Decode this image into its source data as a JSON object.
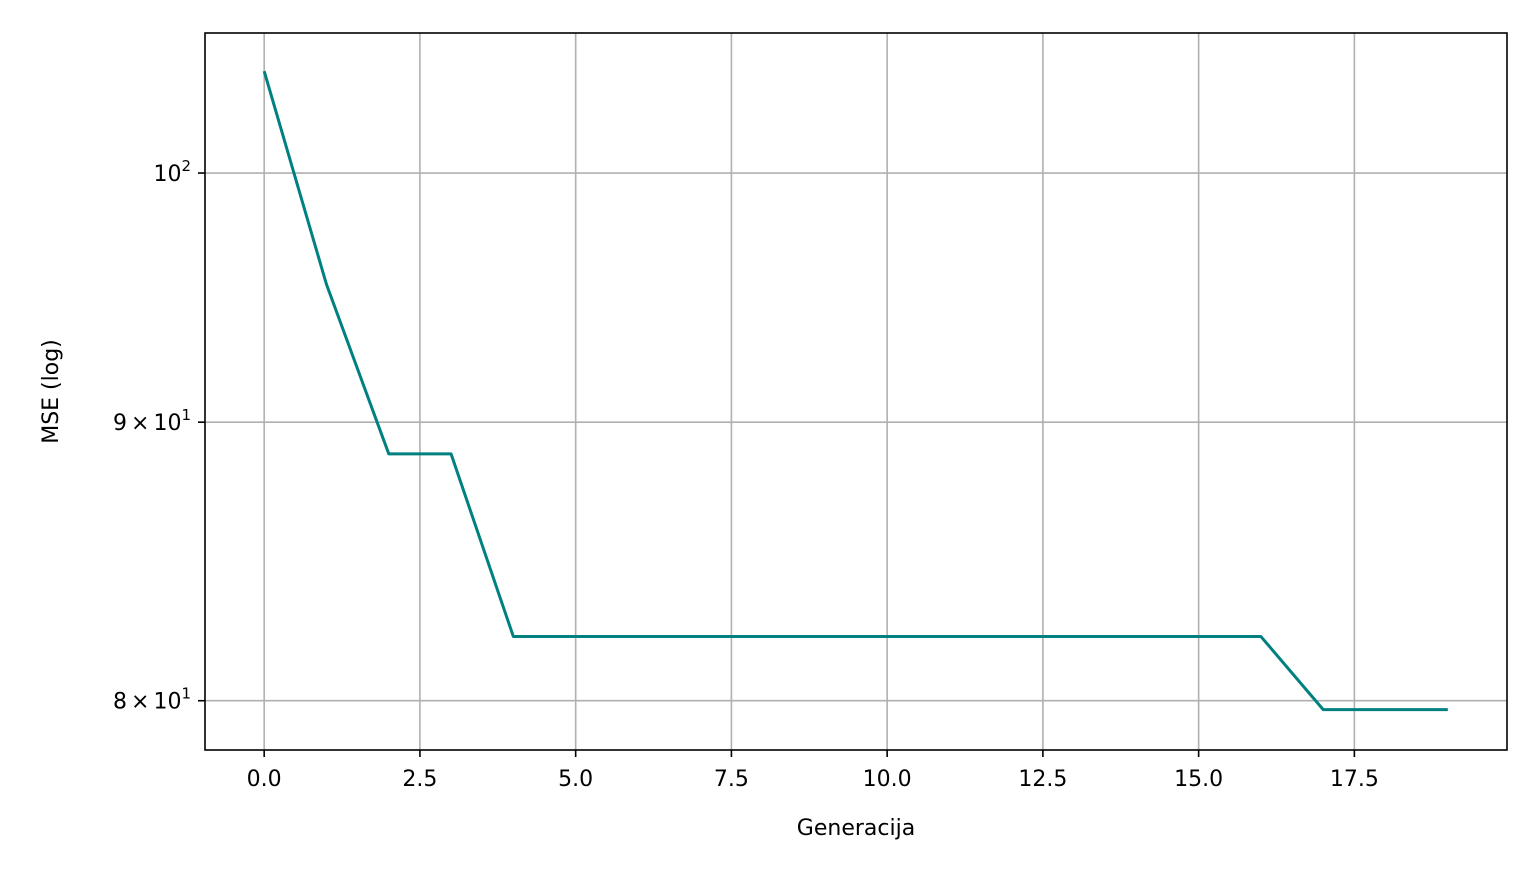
{
  "chart_data": {
    "type": "line",
    "title": "",
    "xlabel": "Generacija",
    "ylabel": "MSE (log)",
    "xscale": "linear",
    "yscale": "log",
    "xlim": [
      -0.95,
      19.95
    ],
    "ylim": [
      78.35,
      106.1
    ],
    "grid": true,
    "legend": "none",
    "line_color": "#008080",
    "grid_color": "#b0b0b0",
    "xticks": [
      {
        "value": 0.0,
        "label": "0.0"
      },
      {
        "value": 2.5,
        "label": "2.5"
      },
      {
        "value": 5.0,
        "label": "5.0"
      },
      {
        "value": 7.5,
        "label": "7.5"
      },
      {
        "value": 10.0,
        "label": "10.0"
      },
      {
        "value": 12.5,
        "label": "12.5"
      },
      {
        "value": 15.0,
        "label": "15.0"
      },
      {
        "value": 17.5,
        "label": "17.5"
      }
    ],
    "yticks": [
      {
        "value": 80,
        "base": "8",
        "mantissa": "10",
        "exp": "1"
      },
      {
        "value": 90,
        "base": "9",
        "mantissa": "10",
        "exp": "1"
      },
      {
        "value": 100,
        "base": "",
        "mantissa": "10",
        "exp": "2"
      }
    ],
    "series": [
      {
        "x": [
          0,
          1,
          2,
          3,
          4,
          5,
          6,
          7,
          8,
          9,
          10,
          11,
          12,
          13,
          14,
          15,
          16,
          17,
          18,
          19
        ],
        "values": [
          104.4,
          95.4,
          88.8,
          88.8,
          82.2,
          82.2,
          82.2,
          82.2,
          82.2,
          82.2,
          82.2,
          82.2,
          82.2,
          82.2,
          82.2,
          82.2,
          82.2,
          79.7,
          79.7,
          79.7
        ]
      }
    ]
  }
}
